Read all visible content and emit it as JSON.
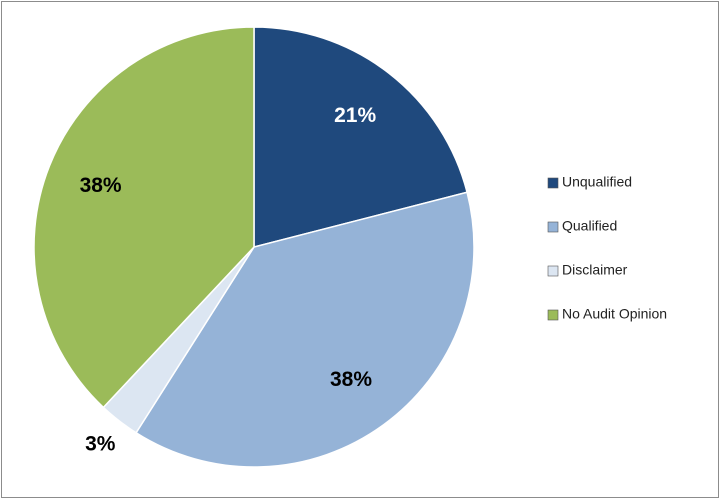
{
  "chart_data": {
    "type": "pie",
    "categories": [
      "Unqualified",
      "Qualified",
      "Disclaimer",
      "No Audit Opinion"
    ],
    "values": [
      21,
      38,
      3,
      38
    ],
    "value_labels": [
      "21%",
      "38%",
      "3%",
      "38%"
    ],
    "colors": [
      "#1f497d",
      "#95b3d7",
      "#dce6f2",
      "#9bbb59"
    ],
    "legend": "right"
  }
}
